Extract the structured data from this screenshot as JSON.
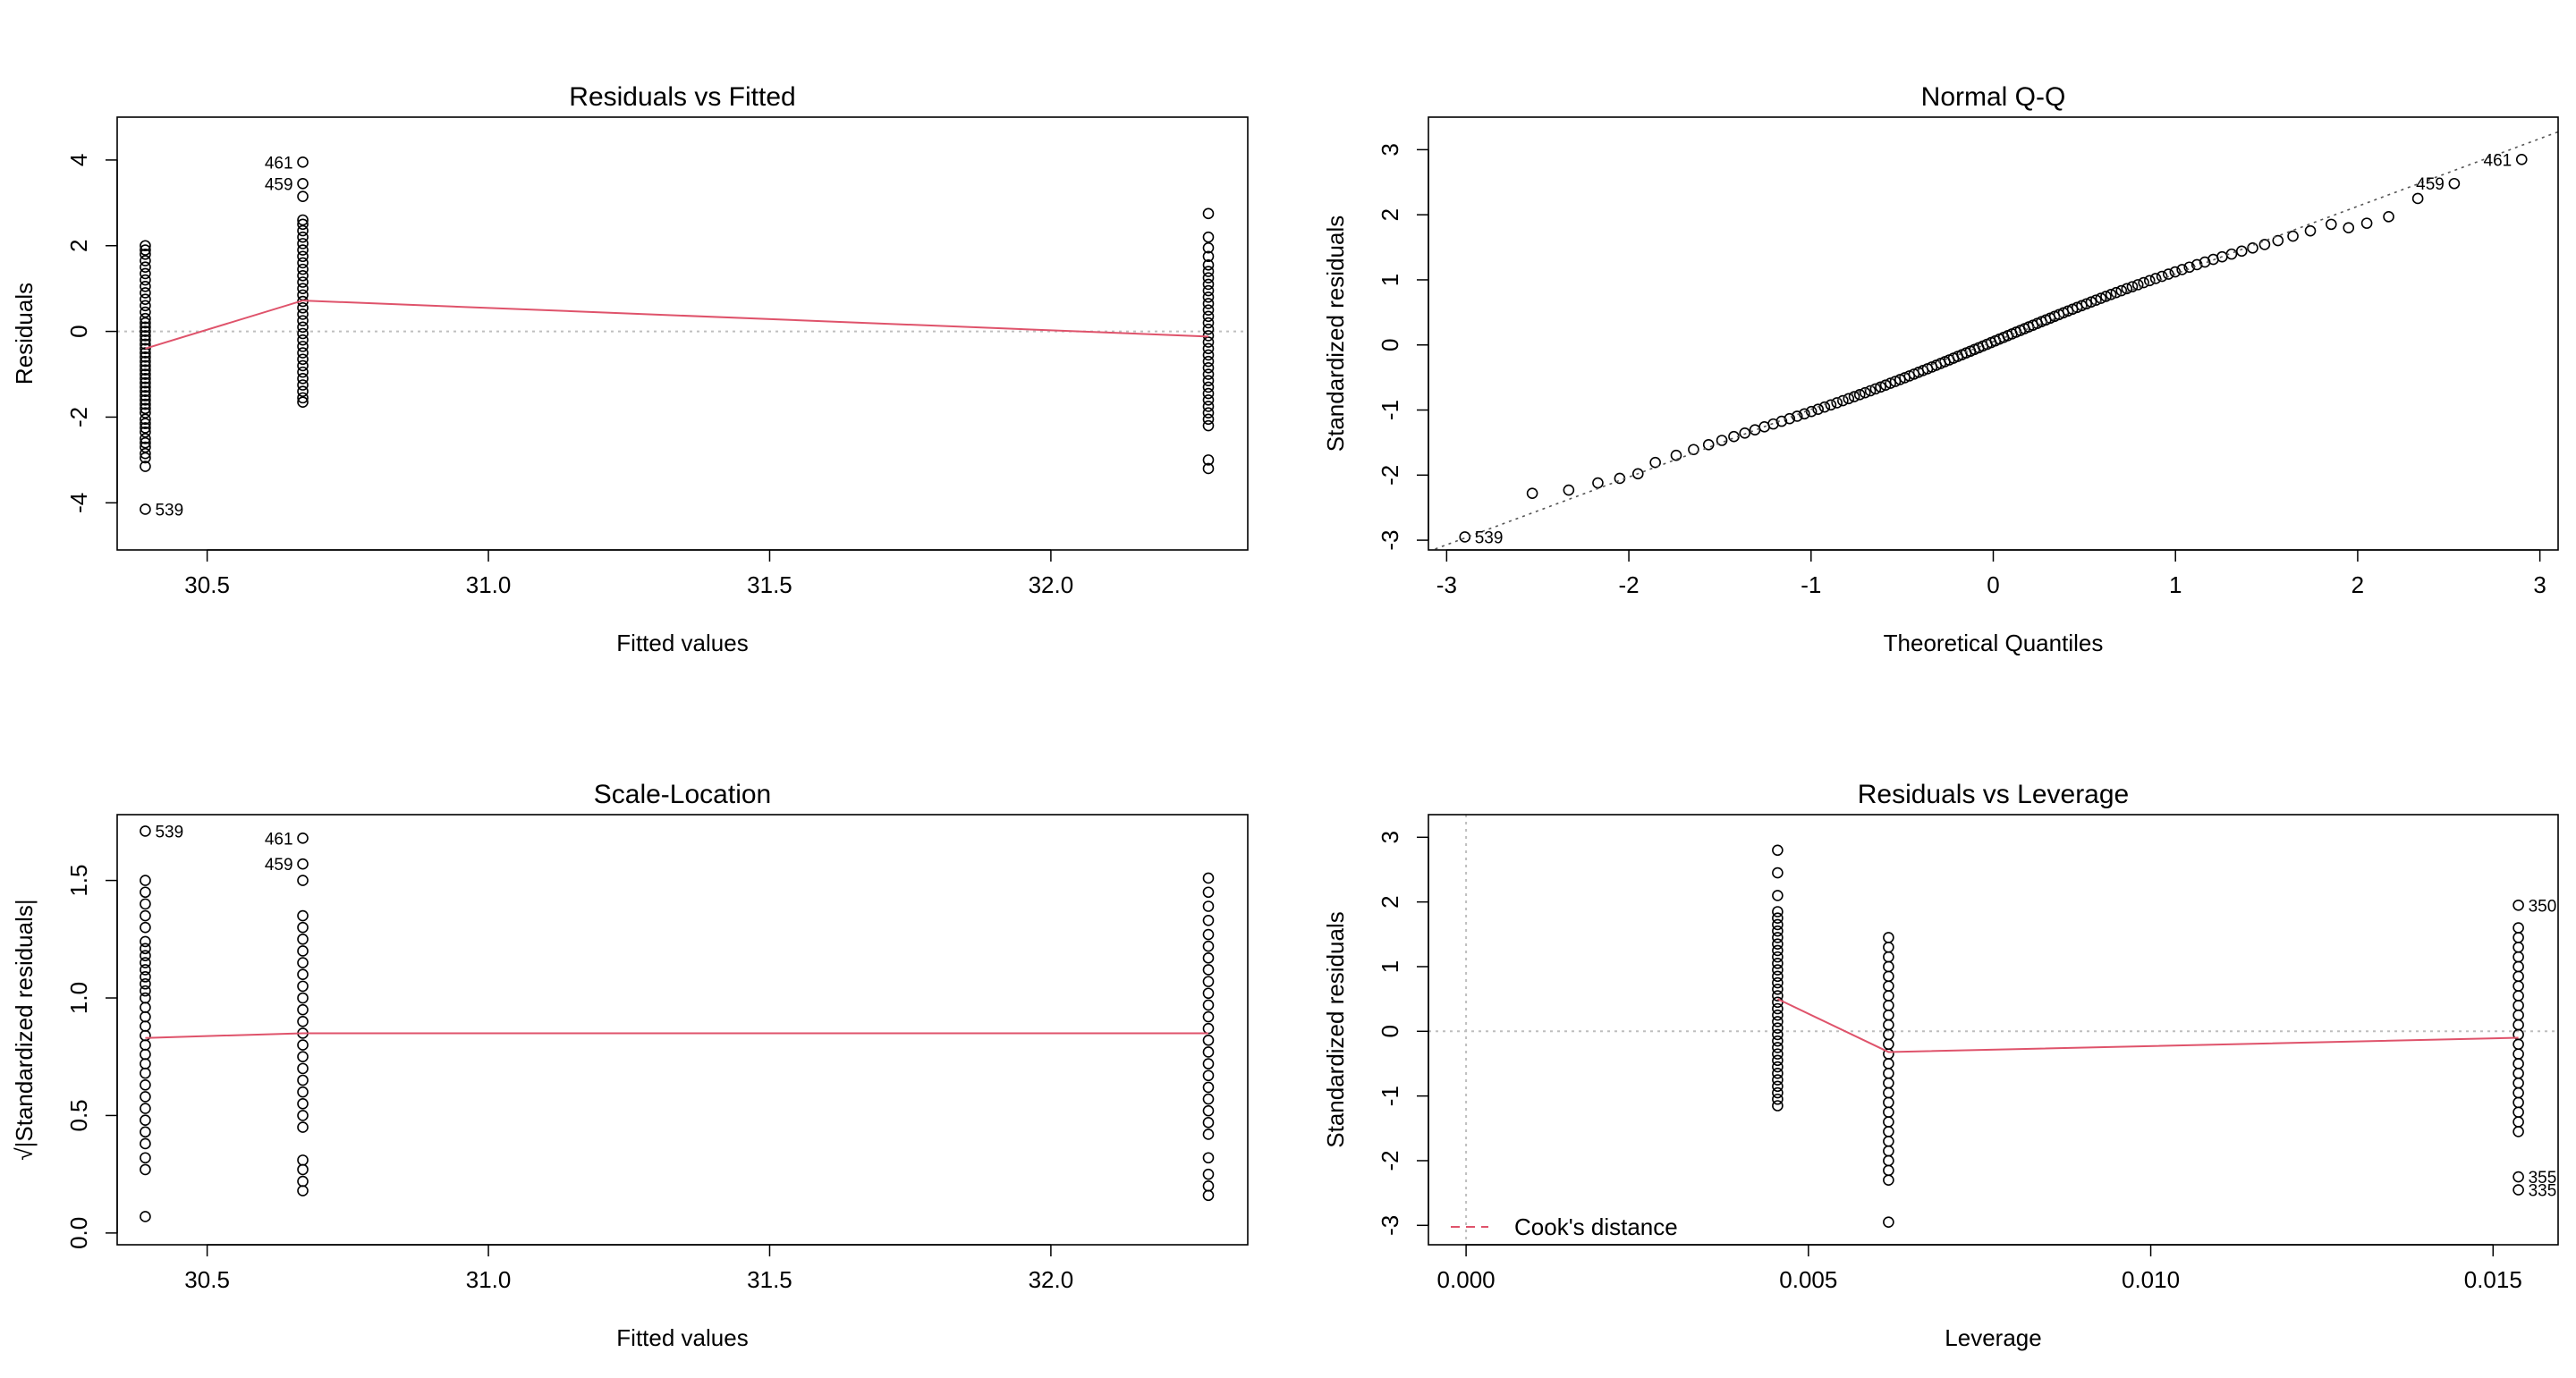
{
  "colors": {
    "points": "#000000",
    "smooth": "#df536b",
    "reference": "#bebebe",
    "qqline": "#555555",
    "frame": "#000000"
  },
  "chart_data": [
    {
      "type": "scatter",
      "title": "Residuals vs Fitted",
      "xlabel": "Fitted values",
      "ylabel": "Residuals",
      "xlim": [
        30.34,
        32.35
      ],
      "ylim": [
        -5.1,
        5.0
      ],
      "xticks": [
        30.5,
        31.0,
        31.5,
        32.0
      ],
      "xtick_labels": [
        "30.5",
        "31.0",
        "31.5",
        "32.0"
      ],
      "yticks": [
        -4,
        -2,
        0,
        2,
        4
      ],
      "ytick_labels": [
        "-4",
        "-2",
        "0",
        "2",
        "4"
      ],
      "reference_h": 0,
      "groups": [
        {
          "x": 30.39,
          "y": [
            -4.15,
            -3.15,
            -2.95,
            -2.85,
            -2.7,
            -2.6,
            -2.5,
            -2.35,
            -2.25,
            -2.15,
            -2.05,
            -1.9,
            -1.8,
            -1.7,
            -1.6,
            -1.5,
            -1.4,
            -1.3,
            -1.2,
            -1.1,
            -1.0,
            -0.9,
            -0.8,
            -0.7,
            -0.6,
            -0.5,
            -0.4,
            -0.3,
            -0.2,
            -0.1,
            0.0,
            0.1,
            0.2,
            0.3,
            0.45,
            0.6,
            0.75,
            0.9,
            1.05,
            1.2,
            1.35,
            1.5,
            1.65,
            1.8,
            1.9,
            2.0
          ]
        },
        {
          "x": 30.67,
          "y": [
            -1.65,
            -1.55,
            -1.4,
            -1.25,
            -1.1,
            -0.95,
            -0.8,
            -0.65,
            -0.5,
            -0.35,
            -0.2,
            -0.05,
            0.1,
            0.25,
            0.4,
            0.55,
            0.7,
            0.85,
            1.0,
            1.15,
            1.3,
            1.45,
            1.6,
            1.75,
            1.9,
            2.05,
            2.2,
            2.35,
            2.5,
            2.6,
            3.15,
            3.45,
            3.95
          ]
        },
        {
          "x": 32.28,
          "y": [
            -3.2,
            -3.0,
            -2.2,
            -2.05,
            -1.9,
            -1.75,
            -1.6,
            -1.45,
            -1.3,
            -1.15,
            -1.0,
            -0.85,
            -0.7,
            -0.55,
            -0.4,
            -0.25,
            -0.1,
            0.05,
            0.2,
            0.35,
            0.5,
            0.65,
            0.8,
            0.95,
            1.1,
            1.25,
            1.4,
            1.55,
            1.75,
            1.95,
            2.2,
            2.75
          ]
        }
      ],
      "smooth": {
        "x": [
          30.39,
          30.67,
          32.28
        ],
        "y": [
          -0.4,
          0.72,
          -0.12
        ]
      },
      "labels": [
        {
          "text": "461",
          "x": 30.67,
          "y": 3.95,
          "side": "left"
        },
        {
          "text": "459",
          "x": 30.67,
          "y": 3.45,
          "side": "left"
        },
        {
          "text": "539",
          "x": 30.39,
          "y": -4.15,
          "side": "right"
        }
      ]
    },
    {
      "type": "scatter",
      "title": "Normal Q-Q",
      "xlabel": "Theoretical Quantiles",
      "ylabel": "Standardized residuals",
      "xlim": [
        -3.1,
        3.1
      ],
      "ylim": [
        -3.15,
        3.5
      ],
      "xticks": [
        -3,
        -2,
        -1,
        0,
        1,
        2,
        3
      ],
      "xtick_labels": [
        "-3",
        "-2",
        "-1",
        "0",
        "1",
        "2",
        "3"
      ],
      "yticks": [
        -3,
        -2,
        -1,
        0,
        1,
        2,
        3
      ],
      "ytick_labels": [
        "-3",
        "-2",
        "-1",
        "0",
        "1",
        "2",
        "3"
      ],
      "n_points": 110,
      "qqline": {
        "slope": 1.04,
        "intercept": 0.05
      },
      "tail_points": [
        {
          "x": -2.9,
          "y": -2.95
        },
        {
          "x": -2.53,
          "y": -2.28
        },
        {
          "x": -2.33,
          "y": -2.23
        },
        {
          "x": -2.17,
          "y": -2.12
        },
        {
          "x": -2.05,
          "y": -2.05
        },
        {
          "x": -1.95,
          "y": -1.98
        },
        {
          "x": 2.17,
          "y": 1.97
        },
        {
          "x": 2.05,
          "y": 1.87
        },
        {
          "x": 1.95,
          "y": 1.8
        },
        {
          "x": 2.33,
          "y": 2.25
        },
        {
          "x": 2.53,
          "y": 2.48
        },
        {
          "x": 2.9,
          "y": 2.85
        }
      ],
      "labels": [
        {
          "text": "461",
          "x": 2.9,
          "y": 2.85,
          "side": "left"
        },
        {
          "text": "459",
          "x": 2.53,
          "y": 2.48,
          "side": "left"
        },
        {
          "text": "539",
          "x": -2.9,
          "y": -2.95,
          "side": "right"
        }
      ]
    },
    {
      "type": "scatter",
      "title": "Scale-Location",
      "xlabel": "Fitted values",
      "ylabel": "√|Standardized residuals|",
      "xlim": [
        30.34,
        32.35
      ],
      "ylim": [
        -0.05,
        1.78
      ],
      "xticks": [
        30.5,
        31.0,
        31.5,
        32.0
      ],
      "xtick_labels": [
        "30.5",
        "31.0",
        "31.5",
        "32.0"
      ],
      "yticks": [
        0.0,
        0.5,
        1.0,
        1.5
      ],
      "ytick_labels": [
        "0.0",
        "0.5",
        "1.0",
        "1.5"
      ],
      "groups": [
        {
          "x": 30.39,
          "y": [
            0.07,
            0.27,
            0.32,
            0.38,
            0.43,
            0.48,
            0.53,
            0.58,
            0.63,
            0.68,
            0.72,
            0.76,
            0.8,
            0.84,
            0.88,
            0.92,
            0.96,
            1.0,
            1.03,
            1.06,
            1.09,
            1.12,
            1.15,
            1.18,
            1.21,
            1.24,
            1.3,
            1.35,
            1.4,
            1.45,
            1.5,
            1.71
          ]
        },
        {
          "x": 30.67,
          "y": [
            0.18,
            0.22,
            0.27,
            0.31,
            0.45,
            0.5,
            0.55,
            0.6,
            0.65,
            0.7,
            0.75,
            0.8,
            0.85,
            0.9,
            0.95,
            1.0,
            1.05,
            1.1,
            1.15,
            1.2,
            1.25,
            1.3,
            1.35,
            1.5,
            1.57,
            1.68
          ]
        },
        {
          "x": 32.28,
          "y": [
            0.16,
            0.2,
            0.25,
            0.32,
            0.42,
            0.47,
            0.52,
            0.57,
            0.62,
            0.67,
            0.72,
            0.77,
            0.82,
            0.87,
            0.92,
            0.97,
            1.02,
            1.07,
            1.12,
            1.17,
            1.22,
            1.27,
            1.33,
            1.39,
            1.45,
            1.51
          ]
        }
      ],
      "smooth": {
        "x": [
          30.39,
          30.67,
          32.28
        ],
        "y": [
          0.83,
          0.85,
          0.85
        ]
      },
      "labels": [
        {
          "text": "539",
          "x": 30.39,
          "y": 1.71,
          "side": "right"
        },
        {
          "text": "461",
          "x": 30.67,
          "y": 1.68,
          "side": "left"
        },
        {
          "text": "459",
          "x": 30.67,
          "y": 1.57,
          "side": "left"
        }
      ]
    },
    {
      "type": "scatter",
      "title": "Residuals vs Leverage",
      "xlabel": "Leverage",
      "ylabel": "Standardized residuals",
      "xlim": [
        -0.00055,
        0.01595
      ],
      "ylim": [
        -3.3,
        3.35
      ],
      "xticks": [
        0.0,
        0.005,
        0.01,
        0.015
      ],
      "xtick_labels": [
        "0.000",
        "0.005",
        "0.010",
        "0.015"
      ],
      "yticks": [
        -3,
        -2,
        -1,
        0,
        1,
        2,
        3
      ],
      "ytick_labels": [
        "-3",
        "-2",
        "-1",
        "0",
        "1",
        "2",
        "3"
      ],
      "reference_h": 0,
      "reference_v": 0,
      "groups": [
        {
          "x": 0.00455,
          "y": [
            -1.15,
            -1.05,
            -0.95,
            -0.85,
            -0.75,
            -0.65,
            -0.55,
            -0.45,
            -0.35,
            -0.25,
            -0.15,
            -0.05,
            0.05,
            0.15,
            0.25,
            0.35,
            0.45,
            0.55,
            0.65,
            0.75,
            0.85,
            0.95,
            1.05,
            1.15,
            1.25,
            1.35,
            1.45,
            1.55,
            1.65,
            1.75,
            1.85,
            2.1,
            2.45,
            2.8
          ]
        },
        {
          "x": 0.00617,
          "y": [
            -2.95,
            -2.3,
            -2.15,
            -2.0,
            -1.85,
            -1.7,
            -1.55,
            -1.4,
            -1.25,
            -1.1,
            -0.95,
            -0.8,
            -0.65,
            -0.5,
            -0.35,
            -0.2,
            -0.05,
            0.1,
            0.25,
            0.4,
            0.55,
            0.7,
            0.85,
            1.0,
            1.15,
            1.3,
            1.45
          ]
        },
        {
          "x": 0.01537,
          "y": [
            -2.45,
            -2.25,
            -1.55,
            -1.4,
            -1.25,
            -1.1,
            -0.95,
            -0.8,
            -0.65,
            -0.5,
            -0.35,
            -0.2,
            -0.05,
            0.1,
            0.25,
            0.4,
            0.55,
            0.7,
            0.85,
            1.0,
            1.15,
            1.3,
            1.45,
            1.6,
            1.95
          ]
        }
      ],
      "smooth": {
        "x": [
          0.00455,
          0.00617,
          0.01537
        ],
        "y": [
          0.5,
          -0.32,
          -0.1
        ]
      },
      "labels": [
        {
          "text": "350",
          "x": 0.01537,
          "y": 1.95,
          "side": "right"
        },
        {
          "text": "355",
          "x": 0.01537,
          "y": -2.25,
          "side": "right"
        },
        {
          "text": "335",
          "x": 0.01537,
          "y": -2.45,
          "side": "right"
        }
      ],
      "legend": {
        "entry": "Cook's distance",
        "placement": "bottom-left"
      }
    }
  ]
}
